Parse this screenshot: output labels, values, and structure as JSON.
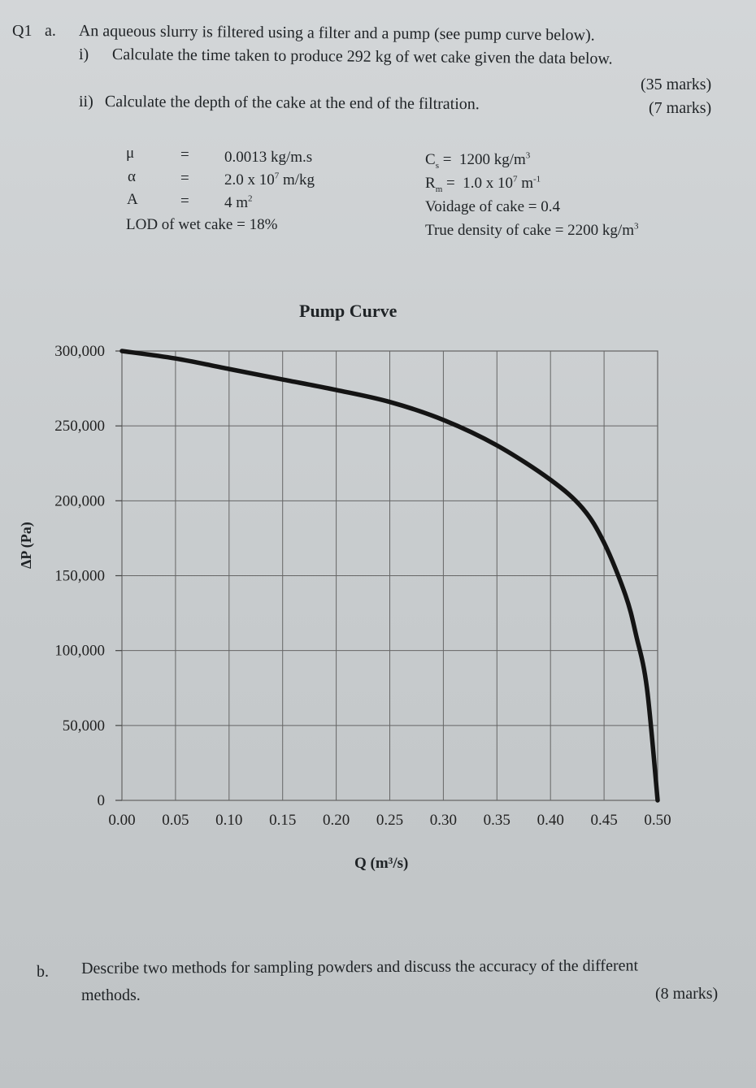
{
  "question": {
    "number": "Q1",
    "part_a_label": "a.",
    "part_a_intro": "An aqueous slurry is filtered using a filter and a pump (see pump curve below).",
    "sub_i_label": "i)",
    "sub_i_text": "Calculate the time taken to produce 292 kg of wet cake given the data below.",
    "sub_i_marks": "(35 marks)",
    "sub_ii_label": "ii)",
    "sub_ii_text": "Calculate the depth of the cake at the end of the filtration.",
    "sub_ii_marks": "(7 marks)"
  },
  "given_data": {
    "mu_symbol": "μ",
    "mu_eq": "=",
    "mu_value": "0.0013 kg/m.s",
    "alpha_symbol": "α",
    "alpha_eq": "=",
    "alpha_base": "2.0 x 10",
    "alpha_exp": "7",
    "alpha_unit": " m/kg",
    "area_symbol": "A",
    "area_eq": "=",
    "area_base": "4 m",
    "area_exp": "2",
    "lod": "LOD of wet cake = 18%",
    "cs_symbol": "C",
    "cs_sub": "s",
    "cs_eq": " = ",
    "cs_value": "1200 kg/m",
    "cs_exp": "3",
    "rm_symbol": "R",
    "rm_sub": "m",
    "rm_eq": " = ",
    "rm_value": "1.0 x 10",
    "rm_exp": "7",
    "rm_unit": " m",
    "rm_unit_exp": "-1",
    "voidage": "Voidage of cake = 0.4",
    "true_density": "True density of cake = 2200 kg/m",
    "true_density_exp": "3"
  },
  "chart_data": {
    "type": "line",
    "title": "Pump Curve",
    "xlabel": "Q (m³/s)",
    "ylabel": "ΔP (Pa)",
    "xlim": [
      0,
      0.5
    ],
    "ylim": [
      0,
      300000
    ],
    "x_ticks": [
      "0.00",
      "0.05",
      "0.10",
      "0.15",
      "0.20",
      "0.25",
      "0.30",
      "0.35",
      "0.40",
      "0.45",
      "0.50"
    ],
    "y_ticks": [
      "0",
      "50,000",
      "100,000",
      "150,000",
      "200,000",
      "250,000",
      "300,000"
    ],
    "grid": true,
    "series": [
      {
        "x": [
          0.0,
          0.05,
          0.1,
          0.15,
          0.2,
          0.25,
          0.3,
          0.35,
          0.4,
          0.43,
          0.45,
          0.47,
          0.48,
          0.49,
          0.5
        ],
        "y": [
          300000,
          295000,
          288000,
          281000,
          274000,
          266000,
          254000,
          237000,
          214000,
          195000,
          172000,
          137000,
          110000,
          75000,
          0
        ]
      }
    ]
  },
  "part_b": {
    "label": "b.",
    "line1": "Describe two methods for sampling powders and discuss the accuracy of the different",
    "line2": "methods.",
    "marks": "(8 marks)"
  }
}
